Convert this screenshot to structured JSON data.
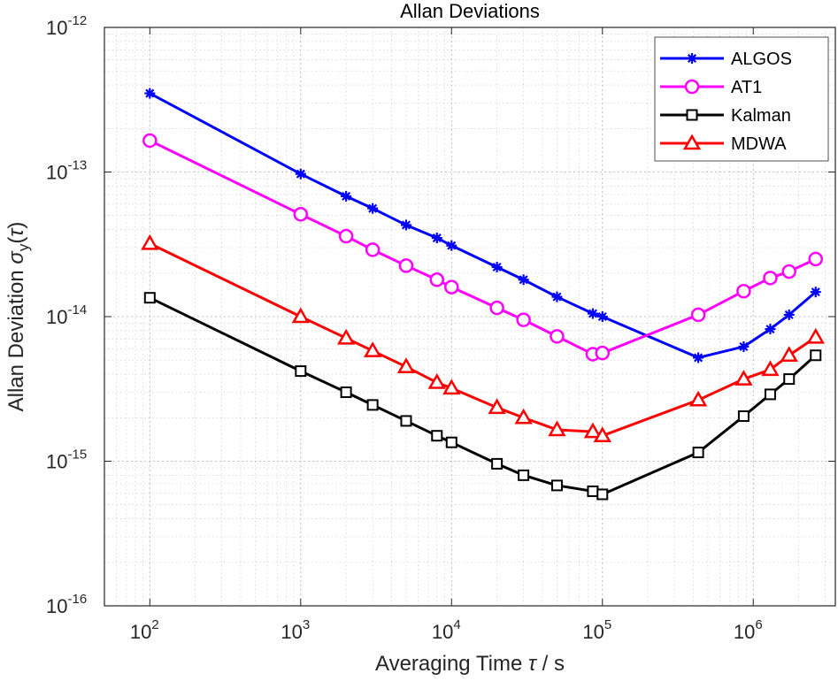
{
  "chart_data": {
    "type": "line",
    "title": "Allan Deviations",
    "xlabel": {
      "main": "Averaging Time ",
      "symbol": "τ",
      "unit": " / s"
    },
    "ylabel": {
      "main": "Allan Deviation ",
      "sigma": "σ",
      "sub": "y",
      "arg_open": "(",
      "tau": "τ",
      "arg_close": ")"
    },
    "xscale": "log",
    "yscale": "log",
    "xlim": [
      50,
      3500000
    ],
    "ylim": [
      1e-16,
      1e-12
    ],
    "grid": true,
    "minor_grid": true,
    "legend_position": "top-right",
    "x_ticks": [
      {
        "value": 100,
        "base": "10",
        "exp": "2"
      },
      {
        "value": 1000,
        "base": "10",
        "exp": "3"
      },
      {
        "value": 10000,
        "base": "10",
        "exp": "4"
      },
      {
        "value": 100000,
        "base": "10",
        "exp": "5"
      },
      {
        "value": 1000000,
        "base": "10",
        "exp": "6"
      }
    ],
    "y_ticks": [
      {
        "value": 1e-16,
        "base": "10",
        "exp": "-16"
      },
      {
        "value": 1e-15,
        "base": "10",
        "exp": "-15"
      },
      {
        "value": 1e-14,
        "base": "10",
        "exp": "-14"
      },
      {
        "value": 1e-13,
        "base": "10",
        "exp": "-13"
      },
      {
        "value": 1e-12,
        "base": "10",
        "exp": "-12"
      }
    ],
    "series": [
      {
        "name": "ALGOS",
        "color": "#0000ff",
        "marker": "asterisk",
        "x": [
          100,
          1000,
          2000,
          3000,
          5000,
          8000,
          10000,
          20000,
          30000,
          50000,
          86400,
          100000,
          432000,
          864000,
          1296000,
          1728000,
          2592000
        ],
        "y": [
          3.5e-13,
          9.7e-14,
          6.8e-14,
          5.6e-14,
          4.3e-14,
          3.5e-14,
          3.1e-14,
          2.2e-14,
          1.8e-14,
          1.37e-14,
          1.05e-14,
          1e-14,
          5.2e-15,
          6.2e-15,
          8.2e-15,
          1.03e-14,
          1.48e-14
        ]
      },
      {
        "name": "AT1",
        "color": "#ff00ff",
        "marker": "circle",
        "x": [
          100,
          1000,
          2000,
          3000,
          5000,
          8000,
          10000,
          20000,
          30000,
          50000,
          86400,
          100000,
          432000,
          864000,
          1296000,
          1728000,
          2592000
        ],
        "y": [
          1.65e-13,
          5.1e-14,
          3.6e-14,
          2.9e-14,
          2.25e-14,
          1.8e-14,
          1.6e-14,
          1.15e-14,
          9.5e-15,
          7.3e-15,
          5.5e-15,
          5.6e-15,
          1.03e-14,
          1.5e-14,
          1.85e-14,
          2.05e-14,
          2.5e-14
        ]
      },
      {
        "name": "Kalman",
        "color": "#000000",
        "marker": "square",
        "x": [
          100,
          1000,
          2000,
          3000,
          5000,
          8000,
          10000,
          20000,
          30000,
          50000,
          86400,
          100000,
          432000,
          864000,
          1296000,
          1728000,
          2592000
        ],
        "y": [
          1.35e-14,
          4.2e-15,
          3e-15,
          2.45e-15,
          1.9e-15,
          1.5e-15,
          1.35e-15,
          9.6e-16,
          8e-16,
          6.8e-16,
          6.2e-16,
          5.9e-16,
          1.15e-15,
          2.05e-15,
          2.9e-15,
          3.7e-15,
          5.4e-15
        ]
      },
      {
        "name": "MDWA",
        "color": "#ff0000",
        "marker": "triangle",
        "x": [
          100,
          1000,
          2000,
          3000,
          5000,
          8000,
          10000,
          20000,
          30000,
          50000,
          86400,
          100000,
          432000,
          864000,
          1296000,
          1728000,
          2592000
        ],
        "y": [
          3.2e-14,
          1e-14,
          7.1e-15,
          5.8e-15,
          4.5e-15,
          3.5e-15,
          3.2e-15,
          2.35e-15,
          2e-15,
          1.65e-15,
          1.6e-15,
          1.5e-15,
          2.65e-15,
          3.7e-15,
          4.3e-15,
          5.4e-15,
          7.2e-15
        ]
      }
    ]
  }
}
